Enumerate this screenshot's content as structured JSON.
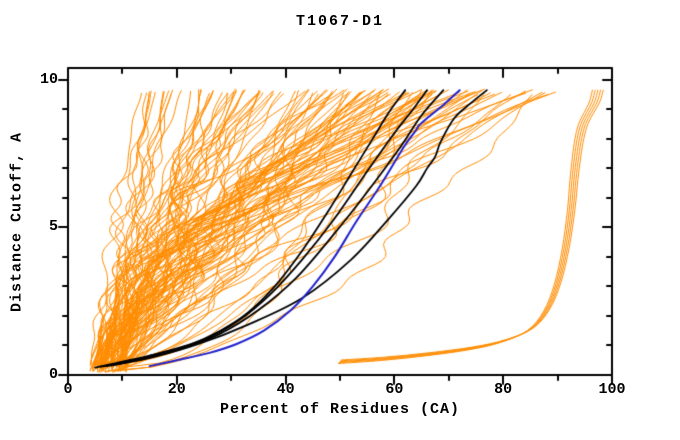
{
  "chart_data": {
    "type": "line",
    "title": "T1067-D1",
    "x_axis": {
      "label": "Percent of Residues (CA)",
      "range": [
        0,
        100
      ],
      "major_ticks": [
        0,
        20,
        40,
        60,
        80,
        100
      ],
      "minor_ticks": [
        10,
        30,
        50,
        70,
        90
      ]
    },
    "y_axis": {
      "label": "Distance Cutoff, A",
      "range": [
        0,
        10.4
      ],
      "major_ticks": [
        0,
        5,
        10
      ],
      "minor_ticks": [
        1,
        2,
        3,
        4,
        6,
        7,
        8,
        9
      ]
    },
    "grid": false,
    "legend": "none",
    "colors": {
      "model_curves": "#ff8c00",
      "reference_curves": "#000000",
      "highlight_curve": "#2121cc",
      "frame": "#000000",
      "background": "#ffffff"
    },
    "series": {
      "highlight_curve": {
        "name": "highlighted-model",
        "color": "#2121cc",
        "points": [
          [
            15,
            0.3
          ],
          [
            20,
            0.5
          ],
          [
            26,
            0.75
          ],
          [
            31,
            1.05
          ],
          [
            36,
            1.5
          ],
          [
            41,
            2.2
          ],
          [
            45,
            3.0
          ],
          [
            49,
            4.0
          ],
          [
            53,
            5.2
          ],
          [
            57,
            6.3
          ],
          [
            60,
            7.2
          ],
          [
            62,
            7.8
          ],
          [
            64,
            8.3
          ],
          [
            64.5,
            8.45
          ],
          [
            66,
            8.7
          ],
          [
            69,
            9.15
          ],
          [
            72,
            9.65
          ]
        ]
      },
      "reference_curves": [
        {
          "name": "reference-1",
          "points": [
            [
              5,
              0.25
            ],
            [
              10,
              0.45
            ],
            [
              16,
              0.7
            ],
            [
              22,
              1.0
            ],
            [
              28,
              1.5
            ],
            [
              33,
              2.1
            ],
            [
              38,
              3.0
            ],
            [
              43,
              4.2
            ],
            [
              48,
              5.6
            ],
            [
              52,
              6.8
            ],
            [
              56,
              8.0
            ],
            [
              59,
              8.9
            ],
            [
              62,
              9.65
            ]
          ]
        },
        {
          "name": "reference-2",
          "points": [
            [
              6,
              0.28
            ],
            [
              12,
              0.5
            ],
            [
              18,
              0.8
            ],
            [
              25,
              1.2
            ],
            [
              31,
              1.8
            ],
            [
              37,
              2.7
            ],
            [
              43,
              3.9
            ],
            [
              49,
              5.3
            ],
            [
              55,
              6.9
            ],
            [
              60,
              8.2
            ],
            [
              63,
              8.9
            ],
            [
              66,
              9.65
            ]
          ]
        },
        {
          "name": "reference-3",
          "points": [
            [
              7,
              0.3
            ],
            [
              14,
              0.55
            ],
            [
              21,
              0.9
            ],
            [
              28,
              1.4
            ],
            [
              35,
              2.2
            ],
            [
              42,
              3.3
            ],
            [
              49,
              4.8
            ],
            [
              55,
              6.2
            ],
            [
              61,
              7.7
            ],
            [
              65,
              8.8
            ],
            [
              69,
              9.65
            ]
          ]
        },
        {
          "name": "reference-4",
          "points": [
            [
              8,
              0.32
            ],
            [
              16,
              0.62
            ],
            [
              24,
              1.05
            ],
            [
              33,
              1.7
            ],
            [
              43,
              2.6
            ],
            [
              52,
              3.9
            ],
            [
              59,
              5.3
            ],
            [
              64,
              6.4
            ],
            [
              66,
              7.0
            ],
            [
              67.5,
              7.4
            ],
            [
              68.5,
              7.9
            ],
            [
              71,
              8.7
            ],
            [
              74,
              9.2
            ],
            [
              77,
              9.65
            ]
          ]
        }
      ],
      "right_bundle": {
        "name": "outlier-model-bundle",
        "color": "#ff8c00",
        "count": 5,
        "spread": 0.5,
        "base_points": [
          [
            50,
            0.45
          ],
          [
            58,
            0.55
          ],
          [
            66,
            0.7
          ],
          [
            74,
            0.9
          ],
          [
            80,
            1.15
          ],
          [
            85,
            1.55
          ],
          [
            88,
            2.2
          ],
          [
            90,
            3.1
          ],
          [
            91.5,
            4.3
          ],
          [
            92.5,
            5.6
          ],
          [
            93,
            6.6
          ],
          [
            93.5,
            7.4
          ],
          [
            94,
            8.0
          ],
          [
            94.7,
            8.5
          ],
          [
            95.8,
            8.9
          ],
          [
            96.8,
            9.25
          ],
          [
            97.4,
            9.65
          ]
        ]
      },
      "model_ensemble": {
        "name": "model-curves",
        "color": "#ff8c00",
        "count": 122,
        "seed": 10671,
        "x_start_range": [
          4,
          11
        ],
        "y_start_range": [
          0.08,
          0.4
        ],
        "y_top_range": [
          9.5,
          9.7
        ],
        "x_top_groups": [
          {
            "weight": 0.24,
            "range": [
              13,
              33
            ]
          },
          {
            "weight": 0.62,
            "range": [
              33,
              76
            ]
          },
          {
            "weight": 0.14,
            "range": [
              76,
              90
            ]
          }
        ],
        "gamma_range": [
          0.85,
          2.1
        ],
        "flat_fraction": 0.1,
        "flat_gamma_range": [
          0.45,
          0.7
        ],
        "wiggle_amp_frac": 0.06
      }
    }
  }
}
